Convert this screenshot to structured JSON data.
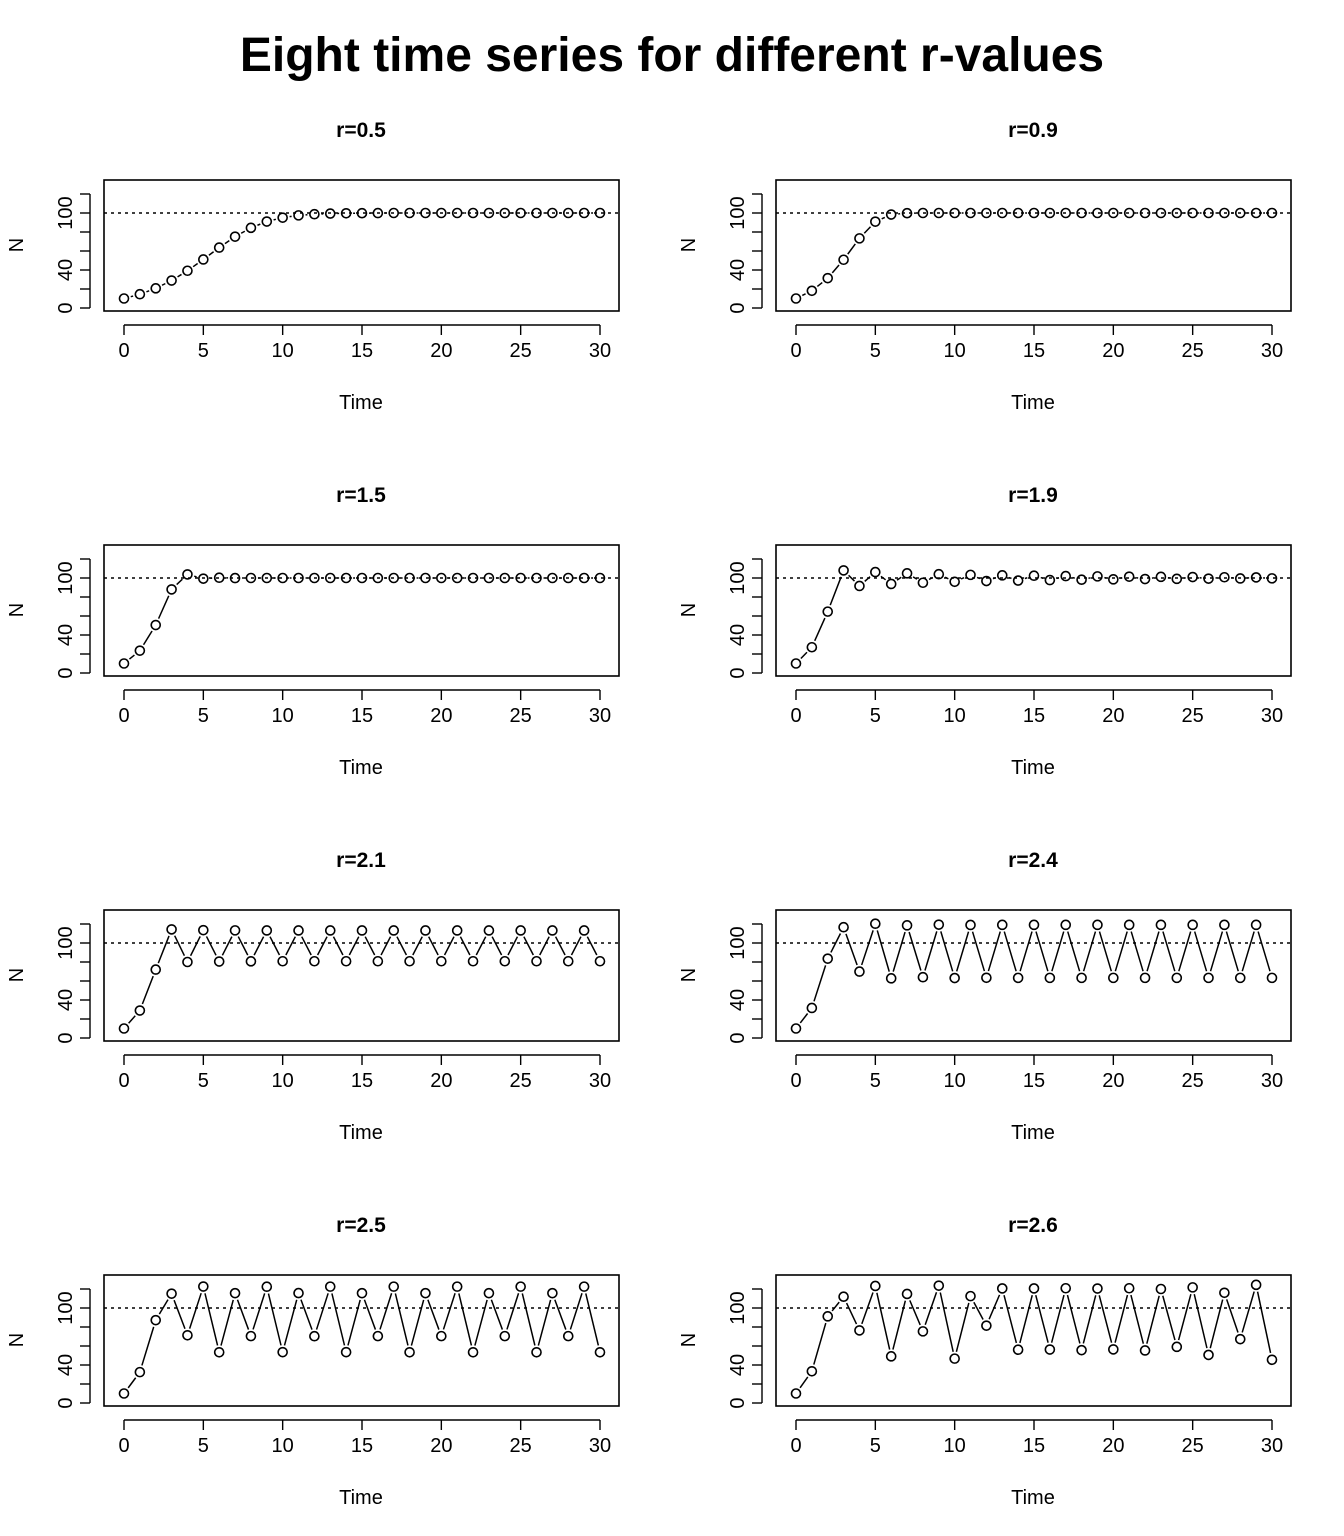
{
  "title": "Eight time series for different r-values",
  "chart_data": [
    {
      "type": "line",
      "title": "r=0.5",
      "xlabel": "Time",
      "ylabel": "N",
      "xlim": [
        0,
        30
      ],
      "ylim": [
        0,
        120
      ],
      "xticks": [
        0,
        5,
        10,
        15,
        20,
        25,
        30
      ],
      "yticks": [
        0,
        40,
        100
      ],
      "hline": 100,
      "series": [
        {
          "x_start": 0,
          "values": [
            10,
            14.5,
            20.7,
            28.9,
            39.2,
            51.1,
            63.6,
            75.1,
            84.4,
            91.0,
            95.1,
            97.5,
            98.7,
            99.4,
            99.7,
            99.8,
            99.9,
            100,
            100,
            100,
            100,
            100,
            100,
            100,
            100,
            100,
            100,
            100,
            100,
            100,
            100
          ]
        }
      ]
    },
    {
      "type": "line",
      "title": "r=0.9",
      "xlabel": "Time",
      "ylabel": "N",
      "xlim": [
        0,
        30
      ],
      "ylim": [
        0,
        120
      ],
      "xticks": [
        0,
        5,
        10,
        15,
        20,
        25,
        30
      ],
      "yticks": [
        0,
        40,
        100
      ],
      "hline": 100,
      "series": [
        {
          "x_start": 0,
          "values": [
            10,
            18.1,
            31.4,
            50.8,
            73.3,
            90.9,
            98.4,
            99.8,
            100,
            100,
            100,
            100,
            100,
            100,
            100,
            100,
            100,
            100,
            100,
            100,
            100,
            100,
            100,
            100,
            100,
            100,
            100,
            100,
            100,
            100,
            100
          ]
        }
      ]
    },
    {
      "type": "line",
      "title": "r=1.5",
      "xlabel": "Time",
      "ylabel": "N",
      "xlim": [
        0,
        30
      ],
      "ylim": [
        0,
        120
      ],
      "xticks": [
        0,
        5,
        10,
        15,
        20,
        25,
        30
      ],
      "yticks": [
        0,
        40,
        100
      ],
      "hline": 100,
      "series": [
        {
          "x_start": 0,
          "values": [
            10,
            23.5,
            50.5,
            88.0,
            103.8,
            99.3,
            100.3,
            99.9,
            100,
            100,
            100,
            100,
            100,
            100,
            100,
            100,
            100,
            100,
            100,
            100,
            100,
            100,
            100,
            100,
            100,
            100,
            100,
            100,
            100,
            100,
            100
          ]
        }
      ]
    },
    {
      "type": "line",
      "title": "r=1.9",
      "xlabel": "Time",
      "ylabel": "N",
      "xlim": [
        0,
        30
      ],
      "ylim": [
        0,
        120
      ],
      "xticks": [
        0,
        5,
        10,
        15,
        20,
        25,
        30
      ],
      "yticks": [
        0,
        40,
        100
      ],
      "hline": 100,
      "series": [
        {
          "x_start": 0,
          "values": [
            10,
            27.1,
            64.6,
            108.0,
            91.6,
            106.2,
            93.7,
            104.9,
            95.0,
            104.0,
            96.0,
            103.3,
            96.8,
            102.8,
            97.3,
            102.4,
            97.8,
            102.0,
            98.2,
            101.7,
            98.6,
            101.4,
            98.9,
            101.2,
            99.1,
            101.0,
            99.3,
            100.8,
            99.5,
            100.6,
            99.6
          ]
        }
      ]
    },
    {
      "type": "line",
      "title": "r=2.1",
      "xlabel": "Time",
      "ylabel": "N",
      "xlim": [
        0,
        30
      ],
      "ylim": [
        0,
        120
      ],
      "xticks": [
        0,
        5,
        10,
        15,
        20,
        25,
        30
      ],
      "yticks": [
        0,
        40,
        100
      ],
      "hline": 100,
      "series": [
        {
          "x_start": 0,
          "values": [
            10,
            28.9,
            72.0,
            114.3,
            80.0,
            113.5,
            80.5,
            113.3,
            80.7,
            113.2,
            80.8,
            113.2,
            80.8,
            113.2,
            80.8,
            113.2,
            80.8,
            113.2,
            80.8,
            113.2,
            80.8,
            113.2,
            80.8,
            113.2,
            80.8,
            113.2,
            80.8,
            113.2,
            80.8,
            113.2,
            80.8
          ]
        }
      ]
    },
    {
      "type": "line",
      "title": "r=2.4",
      "xlabel": "Time",
      "ylabel": "N",
      "xlim": [
        0,
        30
      ],
      "ylim": [
        0,
        120
      ],
      "xticks": [
        0,
        5,
        10,
        15,
        20,
        25,
        30
      ],
      "yticks": [
        0,
        40,
        100
      ],
      "hline": 100,
      "series": [
        {
          "x_start": 0,
          "values": [
            10,
            31.6,
            83.5,
            116.6,
            69.9,
            120.3,
            62.8,
            118.6,
            64.0,
            119.3,
            63.1,
            119.0,
            63.4,
            119.1,
            63.3,
            119.1,
            63.3,
            119.1,
            63.3,
            119.1,
            63.3,
            119.1,
            63.3,
            119.1,
            63.3,
            119.1,
            63.3,
            119.1,
            63.3,
            119.1,
            63.3
          ]
        }
      ]
    },
    {
      "type": "line",
      "title": "r=2.5",
      "xlabel": "Time",
      "ylabel": "N",
      "xlim": [
        0,
        30
      ],
      "ylim": [
        0,
        120
      ],
      "xticks": [
        0,
        5,
        10,
        15,
        20,
        25,
        30
      ],
      "yticks": [
        0,
        40,
        100
      ],
      "hline": 100,
      "series": [
        {
          "x_start": 0,
          "values": [
            10,
            32.5,
            87.2,
            115.1,
            71.3,
            122.6,
            53.4,
            115.6,
            70.4,
            122.4,
            53.5,
            115.7,
            70.3,
            122.5,
            53.5,
            115.6,
            70.4,
            122.5,
            53.4,
            115.6,
            70.4,
            122.5,
            53.4,
            115.6,
            70.4,
            122.5,
            53.4,
            115.6,
            70.4,
            122.5,
            53.4
          ]
        }
      ]
    },
    {
      "type": "line",
      "title": "r=2.6",
      "xlabel": "Time",
      "ylabel": "N",
      "xlim": [
        0,
        30
      ],
      "ylim": [
        0,
        120
      ],
      "xticks": [
        0,
        5,
        10,
        15,
        20,
        25,
        30
      ],
      "yticks": [
        0,
        40,
        100
      ],
      "hline": 100,
      "series": [
        {
          "x_start": 0,
          "values": [
            10,
            33.4,
            91.2,
            111.9,
            76.4,
            123.2,
            49.1,
            114.8,
            75.4,
            123.5,
            46.7,
            112.5,
            81.4,
            120.6,
            56.1,
            120.6,
            56.3,
            120.8,
            55.6,
            120.5,
            56.4,
            120.8,
            55.3,
            120.0,
            59.1,
            121.7,
            50.6,
            116.0,
            67.2,
            124.4,
            45.5
          ]
        }
      ]
    }
  ]
}
